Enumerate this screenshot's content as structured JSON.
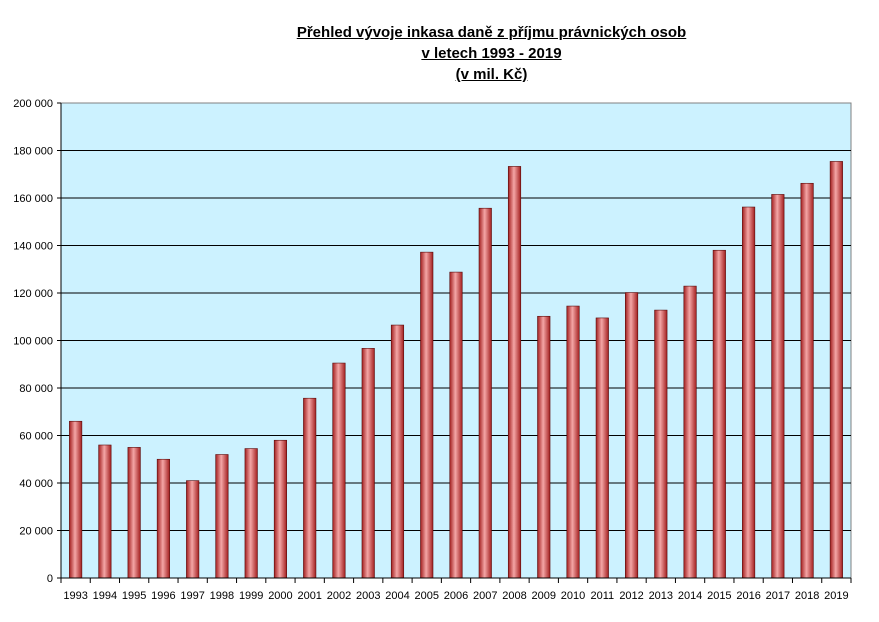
{
  "chart_data": {
    "type": "bar",
    "title_lines": [
      "Přehled vývoje inkasa daně z příjmu právnických osob",
      "v letech 1993 - 2019",
      "(v mil. Kč)"
    ],
    "xlabel": "",
    "ylabel": "",
    "categories": [
      "1993",
      "1994",
      "1995",
      "1996",
      "1997",
      "1998",
      "1999",
      "2000",
      "2001",
      "2002",
      "2003",
      "2004",
      "2005",
      "2006",
      "2007",
      "2008",
      "2009",
      "2010",
      "2011",
      "2012",
      "2013",
      "2014",
      "2015",
      "2016",
      "2017",
      "2018",
      "2019"
    ],
    "values": [
      66000,
      56000,
      55000,
      50000,
      41000,
      52000,
      54500,
      58000,
      75700,
      90500,
      96700,
      106500,
      137200,
      128800,
      155700,
      173300,
      110200,
      114500,
      109500,
      120200,
      112800,
      122900,
      138000,
      156200,
      161500,
      166200,
      175400
    ],
    "ylim": [
      0,
      200000
    ],
    "yticks": [
      0,
      20000,
      40000,
      60000,
      80000,
      100000,
      120000,
      140000,
      160000,
      180000,
      200000
    ],
    "ytick_labels": [
      "0",
      "20 000",
      "40 000",
      "60 000",
      "80 000",
      "100 000",
      "120 000",
      "140 000",
      "160 000",
      "180 000",
      "200 000"
    ],
    "grid": true,
    "legend": "none",
    "colors": {
      "plot_background": "#ccf2ff",
      "bar_dark": "#a31f1f",
      "bar_light": "#f4a6a6",
      "gridline": "#000000"
    }
  }
}
